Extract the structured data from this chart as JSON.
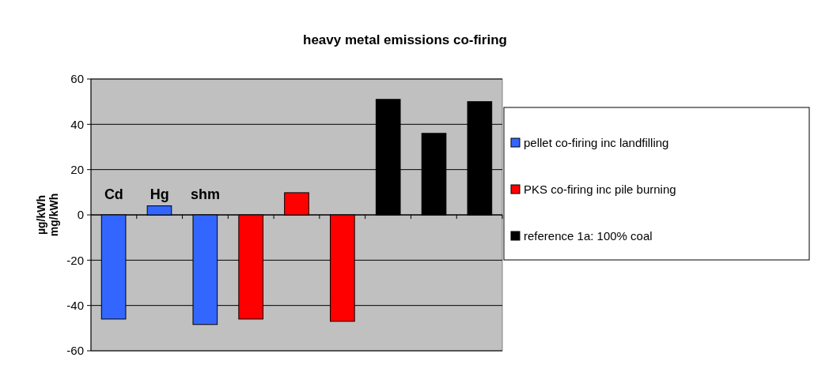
{
  "chart_data": {
    "type": "bar",
    "title": "heavy metal emissions co-firing",
    "ylabel": "µg/kWh\nmg/kWh",
    "categories": [
      null,
      null,
      null,
      null,
      null,
      null,
      null,
      null,
      null
    ],
    "series": [
      {
        "name": "pellet co-firing inc landfilling",
        "color": "#3366ff",
        "values": [
          -46,
          4,
          -48.4,
          null,
          null,
          null,
          null,
          null,
          null
        ]
      },
      {
        "name": "PKS co-firing inc pile burning",
        "color": "#ff0000",
        "values": [
          null,
          null,
          null,
          -46,
          9.8,
          -47,
          null,
          null,
          null
        ]
      },
      {
        "name": "reference 1a: 100% coal",
        "color": "#000000",
        "values": [
          null,
          null,
          null,
          null,
          null,
          null,
          51,
          36,
          50
        ]
      }
    ],
    "annotations": [
      "Cd",
      "Hg",
      "shm"
    ],
    "ylim": [
      -60,
      60
    ],
    "yticks": [
      -60,
      -40,
      -20,
      0,
      20,
      40,
      60
    ],
    "grid": "y",
    "legend": "right"
  }
}
